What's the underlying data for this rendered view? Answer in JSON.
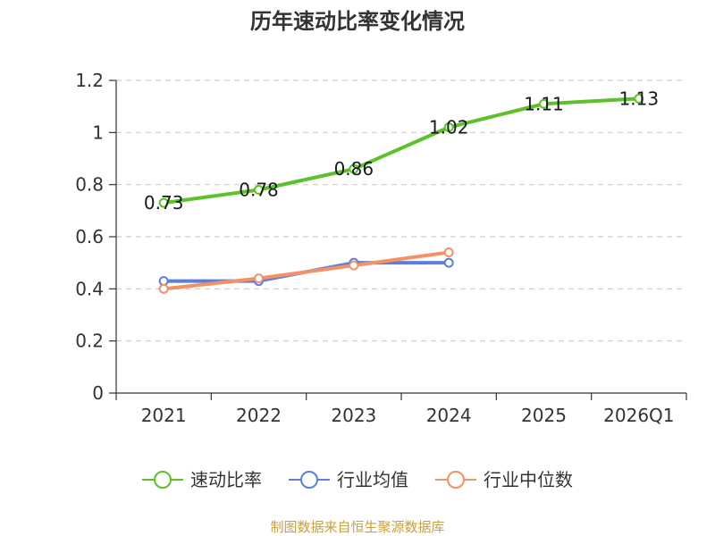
{
  "chart_data": {
    "type": "line",
    "title": "历年速动比率变化情况",
    "categories": [
      "2021",
      "2022",
      "2023",
      "2024",
      "2025",
      "2026Q1"
    ],
    "y_ticks": [
      "0",
      "0.2",
      "0.4",
      "0.6",
      "0.8",
      "1",
      "1.2"
    ],
    "ylim": [
      0,
      1.2
    ],
    "grid": true,
    "legend_position": "bottom",
    "series": [
      {
        "name": "速动比率",
        "color": "#5cc12a",
        "values": [
          0.73,
          0.78,
          0.86,
          1.02,
          1.11,
          1.13
        ],
        "labels": [
          "0.73",
          "0.78",
          "0.86",
          "1.02",
          "1.11",
          "1.13"
        ],
        "show_labels": true
      },
      {
        "name": "行业均值",
        "color": "#5b7fe0",
        "values": [
          0.43,
          0.43,
          0.5,
          0.5,
          null,
          null
        ],
        "show_labels": false
      },
      {
        "name": "行业中位数",
        "color": "#f59163",
        "values": [
          0.4,
          0.44,
          0.49,
          0.54,
          null,
          null
        ],
        "show_labels": false
      }
    ]
  },
  "footer": {
    "source": "制图数据来自恒生聚源数据库",
    "source_color": "#c8a03c"
  }
}
